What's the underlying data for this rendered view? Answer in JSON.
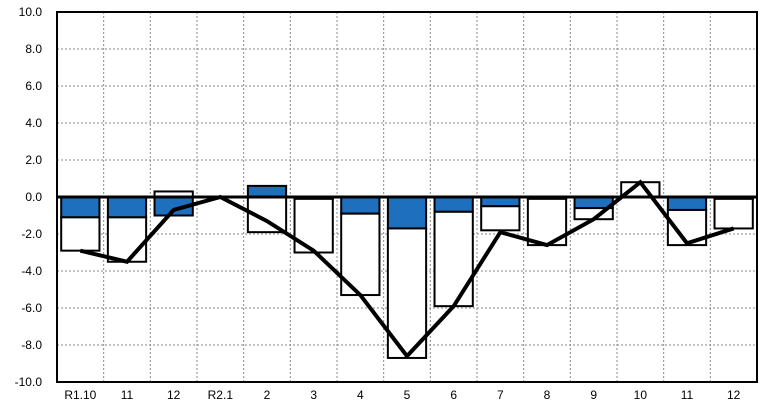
{
  "chart_data": {
    "type": "bar",
    "title": "",
    "xlabel": "",
    "ylabel": "",
    "categories": [
      "R1.10",
      "11",
      "12",
      "R2.1",
      "2",
      "3",
      "4",
      "5",
      "6",
      "7",
      "8",
      "9",
      "10",
      "11",
      "12"
    ],
    "ylim": [
      -10.0,
      10.0
    ],
    "yticks": [
      "10.0",
      "8.0",
      "6.0",
      "4.0",
      "2.0",
      "0.0",
      "-2.0",
      "-4.0",
      "-6.0",
      "-8.0",
      "-10.0"
    ],
    "grid": true,
    "legend": "none",
    "series": [
      {
        "type": "stacked-bar",
        "values": [
          -1.1,
          -1.1,
          -1.0,
          0.0,
          0.6,
          -0.1,
          -0.9,
          -1.7,
          -0.8,
          -0.5,
          -0.1,
          -0.6,
          0.0,
          -0.7,
          -0.1
        ],
        "color": "#1f6fbf"
      },
      {
        "type": "stacked-bar",
        "values": [
          -1.8,
          -2.4,
          0.3,
          0.0,
          -1.9,
          -2.9,
          -4.4,
          -7.0,
          -5.1,
          -1.3,
          -2.5,
          -0.6,
          0.8,
          -1.9,
          -1.6
        ],
        "color": "#ffffff"
      },
      {
        "type": "line",
        "values": [
          -2.9,
          -3.5,
          -0.7,
          0.0,
          -1.3,
          -2.9,
          -5.3,
          -8.6,
          -5.9,
          -1.9,
          -2.6,
          -1.2,
          0.8,
          -2.5,
          -1.7
        ],
        "color": "#000000"
      }
    ]
  }
}
